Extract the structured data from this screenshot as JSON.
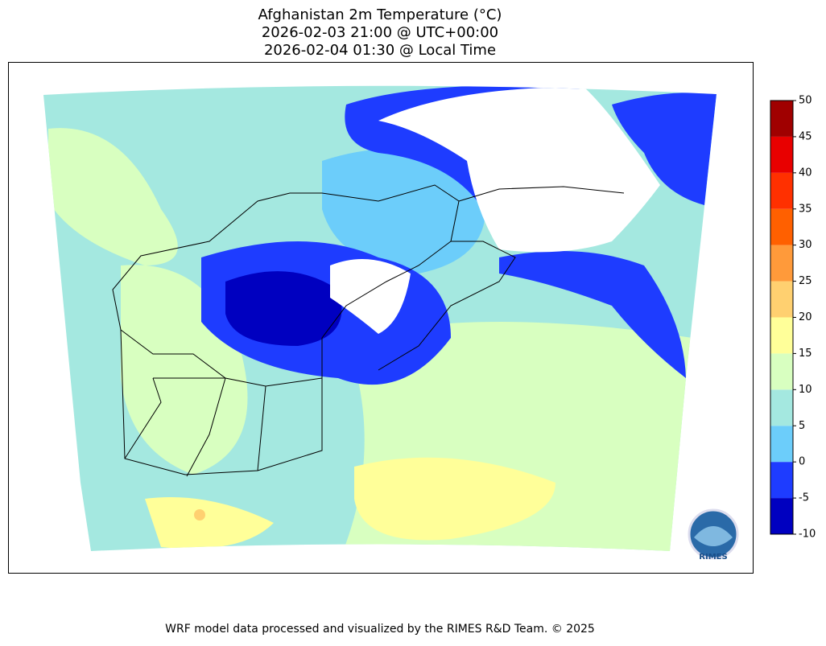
{
  "header": {
    "title_lines": [
      "Afghanistan 2m Temperature (°C)",
      "2026-02-03 21:00 @ UTC+00:00",
      "2026-02-04 01:30 @ Local Time"
    ]
  },
  "colorbar": {
    "levels": [
      -10,
      -5,
      0,
      5,
      10,
      15,
      20,
      25,
      30,
      35,
      40,
      45,
      50
    ],
    "colors": [
      "#0000c0",
      "#1e3cff",
      "#6ccdfa",
      "#a4e8e0",
      "#d8ffc0",
      "#ffff99",
      "#ffd070",
      "#ff9a3a",
      "#ff6000",
      "#ff3000",
      "#e80000",
      "#a00000"
    ]
  },
  "logo": {
    "text": "RIMES"
  },
  "footer": {
    "text": "WRF model data processed and visualized by the RIMES R&D Team. © 2025"
  }
}
